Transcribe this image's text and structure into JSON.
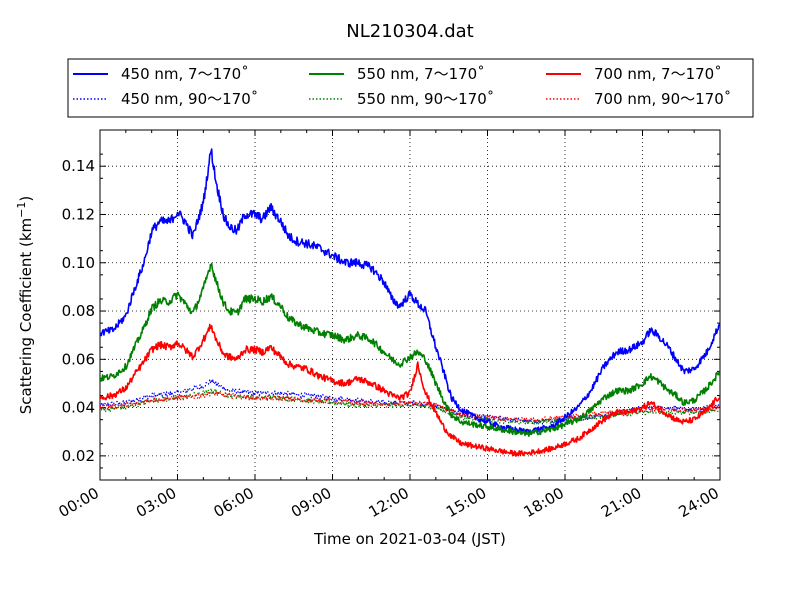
{
  "chart_data": {
    "type": "line",
    "title": "NL210304.dat",
    "xlabel": "Time on 2021-03-04 (JST)",
    "ylabel_main": "Scattering Coefficient (km",
    "ylabel_sup": "−1",
    "ylabel_end": ")",
    "xlim": [
      0,
      24
    ],
    "ylim": [
      0.01,
      0.155
    ],
    "x_ticks": [
      0,
      3,
      6,
      9,
      12,
      15,
      18,
      21,
      24
    ],
    "x_tick_labels": [
      "00:00",
      "03:00",
      "06:00",
      "09:00",
      "12:00",
      "15:00",
      "18:00",
      "21:00",
      "24:00"
    ],
    "y_ticks": [
      0.02,
      0.04,
      0.06,
      0.08,
      0.1,
      0.12,
      0.14
    ],
    "y_tick_labels": [
      "0.02",
      "0.04",
      "0.06",
      "0.08",
      "0.10",
      "0.12",
      "0.14"
    ],
    "grid": true,
    "legend_position": "above plot",
    "series": [
      {
        "name": "450 nm, 7～170˚",
        "color": "#0000ff",
        "style": "solid",
        "x": [
          0,
          0.5,
          1,
          1.3,
          1.7,
          2,
          2.3,
          2.7,
          3,
          3.3,
          3.6,
          4,
          4.3,
          4.5,
          4.8,
          5,
          5.3,
          5.6,
          6,
          6.3,
          6.6,
          7,
          7.3,
          7.6,
          8,
          8.5,
          9,
          9.5,
          10,
          10.5,
          11,
          11.3,
          11.6,
          12,
          12.3,
          12.6,
          13,
          13.3,
          13.6,
          14,
          14.5,
          15,
          15.5,
          16,
          16.5,
          17,
          17.5,
          18,
          18.5,
          19,
          19.5,
          20,
          20.5,
          21,
          21.3,
          21.6,
          22,
          22.3,
          22.6,
          23,
          23.5,
          24
        ],
        "y": [
          0.071,
          0.072,
          0.078,
          0.088,
          0.1,
          0.113,
          0.117,
          0.117,
          0.121,
          0.117,
          0.111,
          0.125,
          0.147,
          0.133,
          0.119,
          0.115,
          0.113,
          0.12,
          0.12,
          0.118,
          0.123,
          0.117,
          0.111,
          0.109,
          0.108,
          0.106,
          0.103,
          0.1,
          0.1,
          0.098,
          0.092,
          0.085,
          0.082,
          0.087,
          0.083,
          0.08,
          0.065,
          0.055,
          0.044,
          0.039,
          0.036,
          0.034,
          0.032,
          0.031,
          0.03,
          0.031,
          0.032,
          0.036,
          0.04,
          0.047,
          0.057,
          0.063,
          0.064,
          0.067,
          0.072,
          0.07,
          0.065,
          0.06,
          0.055,
          0.056,
          0.063,
          0.075
        ]
      },
      {
        "name": "550 nm, 7～170˚",
        "color": "#008000",
        "style": "solid",
        "x": [
          0,
          0.5,
          1,
          1.3,
          1.7,
          2,
          2.3,
          2.7,
          3,
          3.3,
          3.6,
          4,
          4.3,
          4.5,
          4.8,
          5,
          5.3,
          5.6,
          6,
          6.3,
          6.6,
          7,
          7.3,
          7.6,
          8,
          8.5,
          9,
          9.5,
          10,
          10.5,
          11,
          11.3,
          11.6,
          12,
          12.3,
          12.6,
          13,
          13.3,
          13.6,
          14,
          14.5,
          15,
          15.5,
          16,
          16.5,
          17,
          17.5,
          18,
          18.5,
          19,
          19.5,
          20,
          20.5,
          21,
          21.3,
          21.6,
          22,
          22.3,
          22.6,
          23,
          23.5,
          24
        ],
        "y": [
          0.052,
          0.053,
          0.057,
          0.064,
          0.073,
          0.081,
          0.084,
          0.084,
          0.087,
          0.083,
          0.079,
          0.089,
          0.1,
          0.092,
          0.083,
          0.08,
          0.079,
          0.085,
          0.085,
          0.084,
          0.086,
          0.082,
          0.077,
          0.075,
          0.073,
          0.071,
          0.07,
          0.068,
          0.07,
          0.068,
          0.063,
          0.06,
          0.058,
          0.061,
          0.063,
          0.06,
          0.05,
          0.043,
          0.037,
          0.034,
          0.033,
          0.032,
          0.031,
          0.03,
          0.029,
          0.03,
          0.031,
          0.033,
          0.035,
          0.039,
          0.044,
          0.047,
          0.047,
          0.05,
          0.053,
          0.051,
          0.047,
          0.045,
          0.042,
          0.043,
          0.048,
          0.055
        ]
      },
      {
        "name": "700 nm, 7～170˚",
        "color": "#ff0000",
        "style": "solid",
        "x": [
          0,
          0.5,
          1,
          1.3,
          1.7,
          2,
          2.3,
          2.7,
          3,
          3.3,
          3.6,
          4,
          4.3,
          4.5,
          4.8,
          5,
          5.3,
          5.6,
          6,
          6.3,
          6.6,
          7,
          7.3,
          7.6,
          8,
          8.5,
          9,
          9.5,
          10,
          10.5,
          11,
          11.3,
          11.6,
          12,
          12.3,
          12.6,
          13,
          13.3,
          13.6,
          14,
          14.5,
          15,
          15.5,
          16,
          16.5,
          17,
          17.5,
          18,
          18.5,
          19,
          19.5,
          20,
          20.5,
          21,
          21.3,
          21.6,
          22,
          22.3,
          22.6,
          23,
          23.5,
          24
        ],
        "y": [
          0.044,
          0.045,
          0.048,
          0.053,
          0.059,
          0.064,
          0.066,
          0.065,
          0.067,
          0.064,
          0.061,
          0.068,
          0.074,
          0.068,
          0.062,
          0.061,
          0.06,
          0.064,
          0.064,
          0.063,
          0.065,
          0.061,
          0.058,
          0.057,
          0.056,
          0.053,
          0.051,
          0.05,
          0.052,
          0.05,
          0.047,
          0.045,
          0.044,
          0.046,
          0.058,
          0.046,
          0.038,
          0.032,
          0.028,
          0.025,
          0.024,
          0.023,
          0.022,
          0.021,
          0.021,
          0.022,
          0.023,
          0.025,
          0.027,
          0.031,
          0.035,
          0.038,
          0.038,
          0.04,
          0.042,
          0.04,
          0.037,
          0.035,
          0.034,
          0.035,
          0.039,
          0.045
        ]
      },
      {
        "name": "450 nm, 90～170˚",
        "color": "#0000ff",
        "style": "dotted",
        "x": [
          0,
          1,
          2,
          3,
          4,
          4.3,
          5,
          6,
          7,
          8,
          9,
          10,
          11,
          12,
          13,
          13.5,
          14,
          15,
          16,
          17,
          18,
          19,
          20,
          21,
          22,
          23,
          24
        ],
        "y": [
          0.041,
          0.042,
          0.045,
          0.046,
          0.049,
          0.051,
          0.047,
          0.046,
          0.046,
          0.045,
          0.044,
          0.043,
          0.042,
          0.042,
          0.041,
          0.039,
          0.037,
          0.036,
          0.035,
          0.034,
          0.035,
          0.036,
          0.038,
          0.04,
          0.04,
          0.039,
          0.041
        ]
      },
      {
        "name": "550 nm, 90～170˚",
        "color": "#008000",
        "style": "dotted",
        "x": [
          0,
          1,
          2,
          3,
          4,
          4.3,
          5,
          6,
          7,
          8,
          9,
          10,
          11,
          12,
          13,
          13.5,
          14,
          15,
          16,
          17,
          18,
          19,
          20,
          21,
          22,
          23,
          24
        ],
        "y": [
          0.039,
          0.04,
          0.043,
          0.044,
          0.046,
          0.047,
          0.045,
          0.044,
          0.044,
          0.043,
          0.042,
          0.041,
          0.041,
          0.041,
          0.04,
          0.038,
          0.036,
          0.035,
          0.034,
          0.034,
          0.035,
          0.036,
          0.037,
          0.038,
          0.038,
          0.038,
          0.039
        ]
      },
      {
        "name": "700 nm, 90～170˚",
        "color": "#ff0000",
        "style": "dotted",
        "x": [
          0,
          1,
          2,
          3,
          4,
          4.3,
          5,
          6,
          7,
          8,
          9,
          10,
          11,
          12,
          13,
          13.5,
          14,
          15,
          16,
          17,
          18,
          19,
          20,
          21,
          22,
          23,
          24
        ],
        "y": [
          0.04,
          0.041,
          0.043,
          0.044,
          0.045,
          0.046,
          0.045,
          0.044,
          0.044,
          0.043,
          0.043,
          0.042,
          0.041,
          0.042,
          0.041,
          0.039,
          0.037,
          0.036,
          0.035,
          0.035,
          0.036,
          0.037,
          0.038,
          0.039,
          0.039,
          0.039,
          0.04
        ]
      }
    ]
  }
}
